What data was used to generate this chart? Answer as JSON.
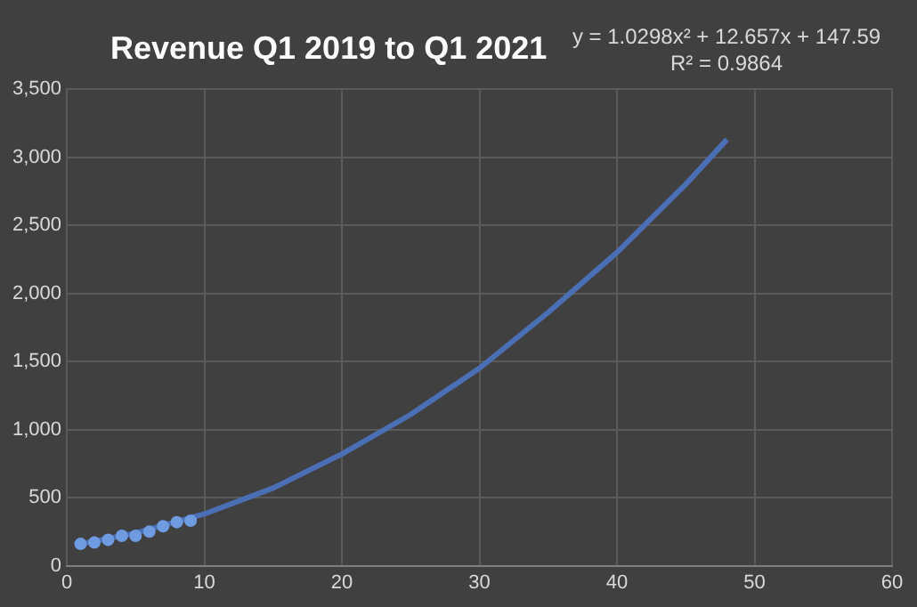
{
  "chart_data": {
    "type": "scatter",
    "title": "Revenue Q1 2019 to Q1 2021",
    "annotations": [
      "y = 1.0298x² + 12.657x + 147.59",
      "R² = 0.9864"
    ],
    "xlim": [
      0,
      60
    ],
    "xticks": [
      0,
      10,
      20,
      30,
      40,
      50,
      60
    ],
    "ylim": [
      0,
      3500
    ],
    "yticks": [
      0,
      {
        "value": 500,
        "label": "500"
      },
      {
        "value": 1000,
        "label": "1,000"
      },
      {
        "value": 1500,
        "label": "1,500"
      },
      {
        "value": 2000,
        "label": "2,000"
      },
      {
        "value": 2500,
        "label": "2,500"
      },
      {
        "value": 3000,
        "label": "3,000"
      },
      {
        "value": 3500,
        "label": "3,500"
      }
    ],
    "grid": true,
    "marker": "circle",
    "series": [
      {
        "type": "scatter",
        "color": "#6f9be0",
        "x": [
          1,
          2,
          3,
          4,
          5,
          6,
          7,
          8,
          9
        ],
        "values": [
          160,
          170,
          190,
          220,
          220,
          250,
          290,
          320,
          330
        ]
      },
      {
        "type": "line",
        "color": "#4a6fb5",
        "marker": "none",
        "x": [
          1,
          5,
          10,
          15,
          20,
          25,
          30,
          35,
          40,
          45,
          48
        ],
        "values": [
          160,
          240,
          380,
          570,
          820,
          1110,
          1450,
          1860,
          2300,
          2800,
          3130
        ]
      }
    ]
  }
}
